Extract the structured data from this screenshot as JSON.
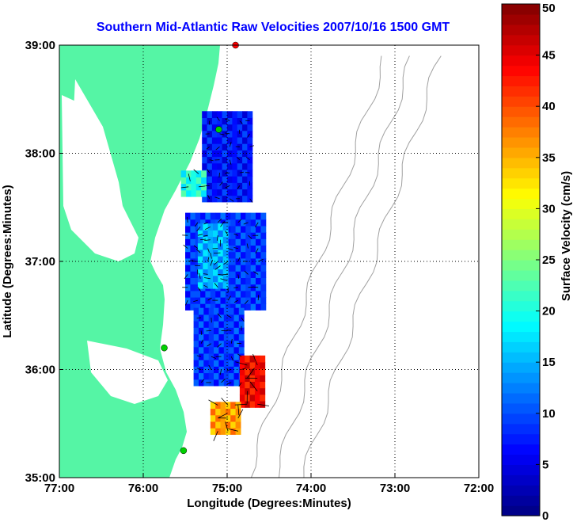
{
  "chart_data": {
    "type": "heatmap",
    "title": "Southern Mid-Atlantic Raw Velocities 2007/10/16 1500 GMT",
    "xlabel": "Longitude (Degrees:Minutes)",
    "ylabel": "Latitude (Degrees:Minutes)",
    "colorbar_label": "Surface Velocity (cm/s)",
    "xlim": [
      -77,
      -72
    ],
    "ylim": [
      35,
      39
    ],
    "x_ticks": [
      {
        "value": -77,
        "label": "77:00"
      },
      {
        "value": -76,
        "label": "76:00"
      },
      {
        "value": -75,
        "label": "75:00"
      },
      {
        "value": -74,
        "label": "74:00"
      },
      {
        "value": -73,
        "label": "73:00"
      },
      {
        "value": -72,
        "label": "72:00"
      }
    ],
    "y_ticks": [
      {
        "value": 35,
        "label": "35:00"
      },
      {
        "value": 36,
        "label": "36:00"
      },
      {
        "value": 37,
        "label": "37:00"
      },
      {
        "value": 38,
        "label": "38:00"
      },
      {
        "value": 39,
        "label": "39:00"
      }
    ],
    "colorbar": {
      "range": [
        0,
        50
      ],
      "ticks": [
        {
          "value": 0,
          "label": "0"
        },
        {
          "value": 5,
          "label": "5"
        },
        {
          "value": 10,
          "label": "10"
        },
        {
          "value": 15,
          "label": "15"
        },
        {
          "value": 20,
          "label": "20"
        },
        {
          "value": 25,
          "label": "25"
        },
        {
          "value": 30,
          "label": "30"
        },
        {
          "value": 35,
          "label": "35"
        },
        {
          "value": 40,
          "label": "40"
        },
        {
          "value": 45,
          "label": "45"
        },
        {
          "value": 50,
          "label": "50"
        }
      ],
      "colormap": "jet"
    },
    "grid": true,
    "velocity_regions": [
      {
        "lon": [
          -75.3,
          -74.7
        ],
        "lat": [
          37.55,
          38.35
        ],
        "speed": 7
      },
      {
        "lon": [
          -75.5,
          -74.55
        ],
        "lat": [
          36.55,
          37.4
        ],
        "speed": 9
      },
      {
        "lon": [
          -75.35,
          -75.0
        ],
        "lat": [
          36.75,
          37.35
        ],
        "speed": 15
      },
      {
        "lon": [
          -75.4,
          -74.8
        ],
        "lat": [
          35.85,
          36.55
        ],
        "speed": 9
      },
      {
        "lon": [
          -74.85,
          -74.6
        ],
        "lat": [
          35.65,
          36.1
        ],
        "speed": 44
      },
      {
        "lon": [
          -75.2,
          -74.85
        ],
        "lat": [
          35.4,
          35.7
        ],
        "speed": 36
      },
      {
        "lon": [
          -75.55,
          -75.3
        ],
        "lat": [
          37.6,
          37.8
        ],
        "speed": 20
      }
    ],
    "land_color": "#55f5a5",
    "contour_color": "#a0a0a0",
    "stations": [
      {
        "lon": -74.9,
        "lat": 39.0,
        "color": "#ff0000"
      },
      {
        "lon": -75.1,
        "lat": 38.22,
        "color": "#00d000"
      },
      {
        "lon": -75.75,
        "lat": 36.2,
        "color": "#00d000"
      },
      {
        "lon": -75.52,
        "lat": 35.25,
        "color": "#00d000"
      }
    ]
  }
}
